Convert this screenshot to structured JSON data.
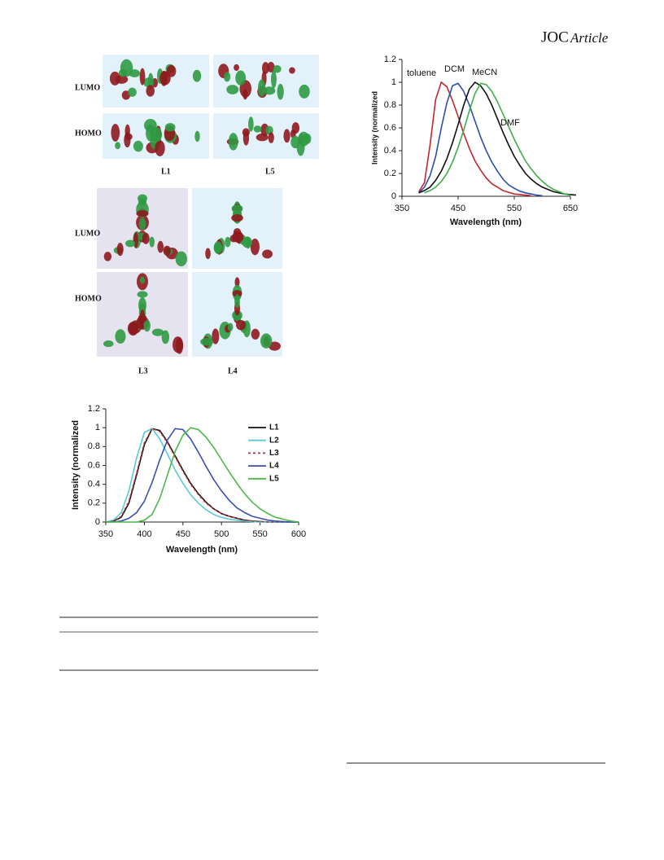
{
  "header": {
    "journal": "JOC",
    "section": "Article"
  },
  "orbital_figures": [
    {
      "rows": [
        "LUMO",
        "HOMO"
      ],
      "columns": [
        "L1",
        "L5"
      ]
    },
    {
      "rows": [
        "LUMO",
        "HOMO"
      ],
      "columns": [
        "L3",
        "L4"
      ]
    }
  ],
  "chart_data": [
    {
      "type": "line",
      "x_label": "Wavelength (nm)",
      "y_label": "Intensity (normalized",
      "x": [
        380,
        390,
        400,
        410,
        420,
        430,
        440,
        450,
        460,
        470,
        480,
        490,
        500,
        510,
        520,
        530,
        540,
        550,
        560,
        570,
        580,
        590,
        600,
        610,
        620,
        630,
        640,
        650,
        660
      ],
      "series": [
        {
          "name": "toluene",
          "color": "#c0282d",
          "values": [
            0.04,
            0.12,
            0.45,
            0.85,
            1.0,
            0.96,
            0.84,
            0.7,
            0.55,
            0.42,
            0.31,
            0.23,
            0.16,
            0.11,
            0.08,
            0.05,
            0.035,
            0.02,
            0.015,
            0.01,
            0.005,
            null,
            null,
            null,
            null,
            null,
            null,
            null,
            null
          ]
        },
        {
          "name": "DCM",
          "color": "#2b4fa8",
          "values": [
            0.03,
            0.08,
            0.18,
            0.35,
            0.6,
            0.82,
            0.97,
            0.99,
            0.92,
            0.8,
            0.66,
            0.52,
            0.4,
            0.3,
            0.22,
            0.15,
            0.1,
            0.07,
            0.045,
            0.03,
            0.02,
            0.01,
            0.005,
            null,
            null,
            null,
            null,
            null,
            null
          ]
        },
        {
          "name": "MeCN",
          "color": "#111111",
          "values": [
            0.03,
            0.05,
            0.08,
            0.14,
            0.22,
            0.33,
            0.47,
            0.63,
            0.8,
            0.94,
            1.0,
            0.97,
            0.9,
            0.8,
            0.68,
            0.56,
            0.45,
            0.35,
            0.27,
            0.2,
            0.15,
            0.11,
            0.08,
            0.06,
            0.04,
            0.03,
            0.02,
            0.015,
            0.01
          ]
        },
        {
          "name": "DMF",
          "color": "#3fae49",
          "values": [
            null,
            0.03,
            0.05,
            0.08,
            0.13,
            0.2,
            0.3,
            0.43,
            0.58,
            0.75,
            0.9,
            0.99,
            0.98,
            0.92,
            0.83,
            0.72,
            0.61,
            0.5,
            0.4,
            0.31,
            0.24,
            0.18,
            0.13,
            0.09,
            0.06,
            0.04,
            0.02,
            0.01,
            null
          ]
        }
      ],
      "xlim": [
        350,
        650
      ],
      "xticks": [
        350,
        450,
        550,
        650
      ],
      "ylim": [
        0,
        1.2
      ],
      "yticks": [
        0,
        0.2,
        0.4,
        0.6,
        0.8,
        1,
        1.2
      ],
      "grid": false,
      "legend": "inline"
    },
    {
      "type": "line",
      "x_label": "Wavelength (nm)",
      "y_label": "Intensity (normalized",
      "x": [
        350,
        360,
        370,
        380,
        390,
        400,
        410,
        420,
        430,
        440,
        450,
        460,
        470,
        480,
        490,
        500,
        510,
        520,
        530,
        540,
        550,
        560,
        570,
        580,
        590,
        600
      ],
      "series": [
        {
          "name": "L1",
          "color": "#111111",
          "line_style": "solid",
          "values": [
            0,
            0.01,
            0.05,
            0.2,
            0.5,
            0.82,
            0.99,
            0.97,
            0.85,
            0.7,
            0.55,
            0.41,
            0.3,
            0.21,
            0.14,
            0.09,
            0.06,
            0.04,
            0.02,
            0.01,
            0.005,
            0,
            0,
            0,
            0,
            0
          ]
        },
        {
          "name": "L2",
          "color": "#5bc8d6",
          "line_style": "solid",
          "values": [
            0,
            0.02,
            0.1,
            0.33,
            0.68,
            0.95,
            0.99,
            0.88,
            0.72,
            0.55,
            0.41,
            0.29,
            0.2,
            0.13,
            0.08,
            0.05,
            0.03,
            0.02,
            0.01,
            0.005,
            0,
            0,
            0,
            0,
            0,
            0
          ]
        },
        {
          "name": "L3",
          "color": "#b5332e",
          "line_style": "dashed",
          "values": [
            0,
            0.01,
            0.06,
            0.22,
            0.52,
            0.84,
            0.99,
            0.96,
            0.84,
            0.69,
            0.54,
            0.4,
            0.29,
            0.2,
            0.14,
            0.09,
            0.06,
            0.04,
            0.02,
            0.01,
            0.005,
            0,
            0,
            0,
            0,
            0
          ]
        },
        {
          "name": "L4",
          "color": "#3a4fb0",
          "line_style": "solid",
          "values": [
            0,
            0,
            0.01,
            0.04,
            0.1,
            0.22,
            0.42,
            0.66,
            0.87,
            0.99,
            0.98,
            0.88,
            0.74,
            0.59,
            0.45,
            0.33,
            0.23,
            0.15,
            0.1,
            0.06,
            0.04,
            0.02,
            0.01,
            0.005,
            0,
            0
          ]
        },
        {
          "name": "L5",
          "color": "#4cb84a",
          "line_style": "solid",
          "values": [
            0,
            0,
            0,
            0,
            0,
            0.02,
            0.08,
            0.25,
            0.5,
            0.75,
            0.92,
            1.0,
            0.98,
            0.9,
            0.79,
            0.66,
            0.53,
            0.41,
            0.3,
            0.21,
            0.14,
            0.09,
            0.05,
            0.03,
            0.01,
            0
          ]
        }
      ],
      "xlim": [
        350,
        600
      ],
      "xticks": [
        350,
        400,
        450,
        500,
        550,
        600
      ],
      "ylim": [
        0,
        1.2
      ],
      "yticks": [
        0,
        0.2,
        0.4,
        0.6,
        0.8,
        1,
        1.2
      ],
      "grid": false,
      "legend": "right"
    }
  ]
}
